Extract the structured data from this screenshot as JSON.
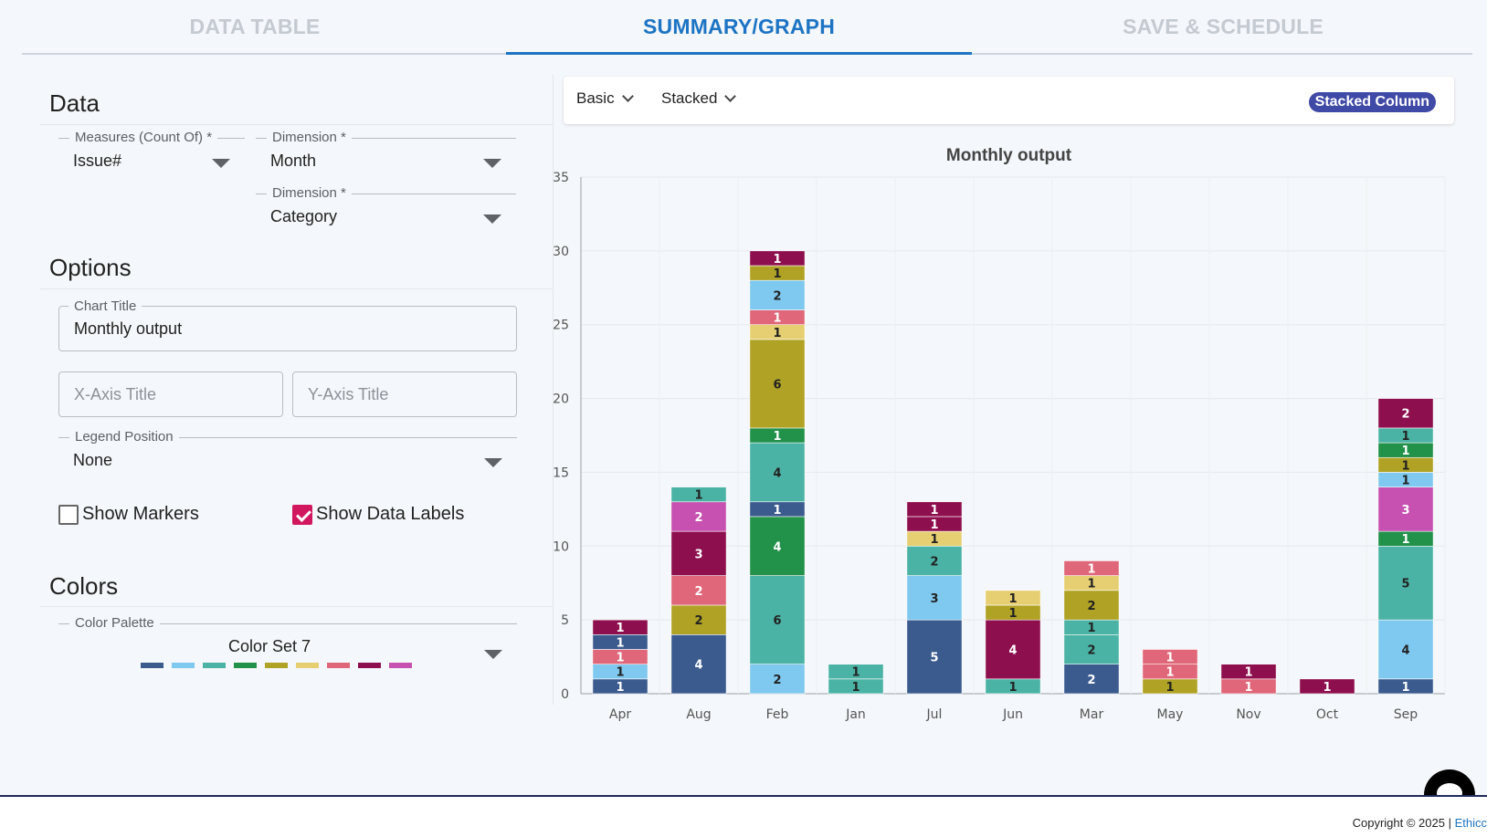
{
  "tabs": [
    {
      "label": "DATA TABLE",
      "active": false
    },
    {
      "label": "SUMMARY/GRAPH",
      "active": true
    },
    {
      "label": "SAVE & SCHEDULE",
      "active": false
    }
  ],
  "data_section": {
    "title": "Data",
    "measures": {
      "label": "Measures (Count Of) *",
      "value": "Issue#"
    },
    "dimension1": {
      "label": "Dimension *",
      "value": "Month"
    },
    "dimension2": {
      "label": "Dimension *",
      "value": "Category"
    }
  },
  "options_section": {
    "title": "Options",
    "chart_title": {
      "label": "Chart Title",
      "value": "Monthly output"
    },
    "x_axis_title": {
      "placeholder": "X-Axis Title",
      "value": ""
    },
    "y_axis_title": {
      "placeholder": "Y-Axis Title",
      "value": ""
    },
    "legend_position": {
      "label": "Legend Position",
      "value": "None"
    },
    "show_markers": {
      "label": "Show Markers",
      "checked": false
    },
    "show_data_labels": {
      "label": "Show Data Labels",
      "checked": true
    }
  },
  "colors_section": {
    "title": "Colors",
    "palette": {
      "label": "Color Palette",
      "value": "Color Set 7"
    },
    "swatches": [
      "#3b5b8f",
      "#7fc8ef",
      "#4bb3a5",
      "#22914a",
      "#b0a225",
      "#e6cf72",
      "#e06779",
      "#8e0f4e",
      "#c651b0"
    ]
  },
  "toolbar": {
    "type_dropdown": "Basic",
    "mode_dropdown": "Stacked",
    "badge": "Stacked Column"
  },
  "chart_data": {
    "type": "bar",
    "stacked": true,
    "title": "Monthly output",
    "xlabel": "",
    "ylabel": "",
    "ylim": [
      0,
      35
    ],
    "yticks": [
      0,
      5,
      10,
      15,
      20,
      25,
      30,
      35
    ],
    "grid": true,
    "legend": "none",
    "categories": [
      "Apr",
      "Aug",
      "Feb",
      "Jan",
      "Jul",
      "Jun",
      "Mar",
      "May",
      "Nov",
      "Oct",
      "Sep"
    ],
    "series": [
      {
        "color": "#3b5b8f",
        "values": [
          1,
          4,
          0,
          0,
          5,
          0,
          2,
          0,
          0,
          0,
          1
        ]
      },
      {
        "color": "#7fc8ef",
        "values": [
          1,
          0,
          2,
          0,
          3,
          0,
          0,
          0,
          0,
          0,
          4
        ]
      },
      {
        "color": "#4bb3a5",
        "values": [
          0,
          0,
          6,
          1,
          0,
          0,
          2,
          0,
          0,
          0,
          5
        ]
      },
      {
        "color": "#22914a",
        "values": [
          0,
          0,
          4,
          0,
          0,
          0,
          0,
          0,
          0,
          0,
          1
        ]
      },
      {
        "color": "#3b5b8f",
        "values": [
          0,
          0,
          1,
          0,
          0,
          0,
          0,
          0,
          0,
          0,
          0
        ]
      },
      {
        "color": "#4bb3a5",
        "values": [
          0,
          0,
          4,
          0,
          2,
          1,
          1,
          0,
          0,
          0,
          0
        ]
      },
      {
        "color": "#8e0f4e",
        "values": [
          0,
          0,
          0,
          0,
          0,
          4,
          0,
          0,
          0,
          0,
          0
        ]
      },
      {
        "color": "#22914a",
        "values": [
          0,
          0,
          1,
          0,
          0,
          0,
          0,
          0,
          0,
          0,
          0
        ]
      },
      {
        "color": "#4bb3a5",
        "values": [
          0,
          0,
          0,
          1,
          0,
          0,
          0,
          0,
          0,
          0,
          0
        ]
      },
      {
        "color": "#b0a225",
        "values": [
          0,
          2,
          6,
          0,
          0,
          1,
          2,
          1,
          0,
          0,
          0
        ]
      },
      {
        "color": "#e6cf72",
        "values": [
          0,
          0,
          1,
          0,
          1,
          1,
          1,
          0,
          0,
          0,
          0
        ]
      },
      {
        "color": "#e06779",
        "values": [
          1,
          2,
          1,
          0,
          0,
          0,
          1,
          1,
          1,
          0,
          0
        ]
      },
      {
        "color": "#e06779",
        "values": [
          0,
          0,
          0,
          0,
          0,
          0,
          0,
          1,
          0,
          0,
          0
        ]
      },
      {
        "color": "#3b5b8f",
        "values": [
          1,
          0,
          0,
          0,
          0,
          0,
          0,
          0,
          0,
          0,
          0
        ]
      },
      {
        "color": "#8e0f4e",
        "values": [
          1,
          3,
          0,
          0,
          1,
          0,
          0,
          0,
          1,
          1,
          0
        ]
      },
      {
        "color": "#c651b0",
        "values": [
          0,
          2,
          0,
          0,
          0,
          0,
          0,
          0,
          0,
          0,
          3
        ]
      },
      {
        "color": "#7fc8ef",
        "values": [
          0,
          0,
          2,
          0,
          0,
          0,
          0,
          0,
          0,
          0,
          1
        ]
      },
      {
        "color": "#b0a225",
        "values": [
          0,
          0,
          1,
          0,
          0,
          0,
          0,
          0,
          0,
          0,
          1
        ]
      },
      {
        "color": "#22914a",
        "values": [
          0,
          0,
          0,
          0,
          0,
          0,
          0,
          0,
          0,
          0,
          1
        ]
      },
      {
        "color": "#4bb3a5",
        "values": [
          0,
          1,
          0,
          0,
          0,
          0,
          0,
          0,
          0,
          0,
          1
        ]
      },
      {
        "color": "#8e0f4e",
        "values": [
          0,
          0,
          1,
          0,
          1,
          0,
          0,
          0,
          0,
          0,
          2
        ]
      }
    ]
  },
  "footer": {
    "copyright": "Copyright © 2025 |",
    "link": "Ethicc"
  }
}
